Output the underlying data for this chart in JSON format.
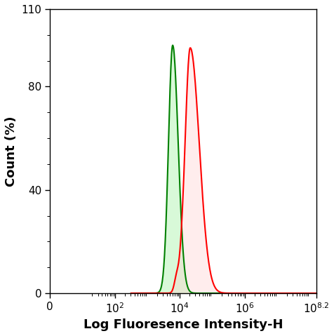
{
  "title": "",
  "xlabel": "Log Fluoresence Intensity-H",
  "ylabel": "Count (%)",
  "xlim_log": [
    0,
    8.2
  ],
  "ylim": [
    0,
    110
  ],
  "yticks": [
    0,
    40,
    80,
    110
  ],
  "xtick_positions": [
    0,
    2,
    4,
    6,
    8.2
  ],
  "green_peak_log": 3.78,
  "green_peak_val": 96,
  "red_peak_log": 4.32,
  "red_peak_val": 95,
  "green_color": "#008000",
  "green_fill": "#90EE90",
  "red_color": "#FF0000",
  "red_fill": "#FFCCCC",
  "line_width": 1.5,
  "background_color": "#ffffff",
  "figsize": [
    4.76,
    4.79
  ],
  "dpi": 100
}
